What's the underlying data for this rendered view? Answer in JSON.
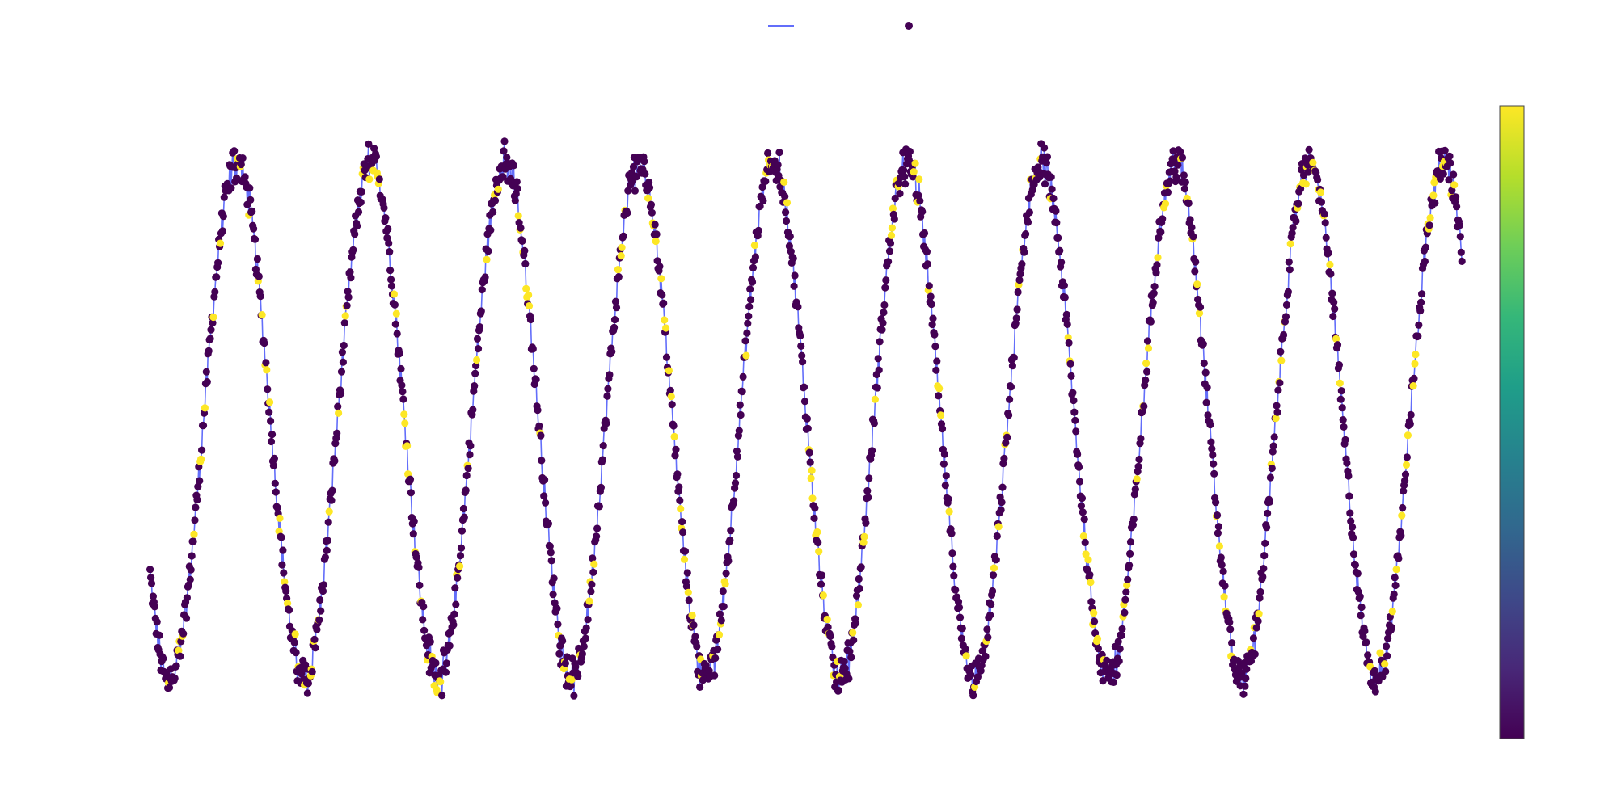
{
  "chart_data": {
    "type": "scatter",
    "title": "",
    "xlabel": "",
    "ylabel": "",
    "axes_visible": false,
    "grid": false,
    "legend_placement": "top-center",
    "legend": [
      {
        "kind": "line",
        "label": "",
        "color": "#636efa"
      },
      {
        "kind": "marker",
        "label": "",
        "color": "#440154"
      }
    ],
    "colorbar": {
      "colorscale": "viridis",
      "colors": [
        "#440154",
        "#482878",
        "#3e4989",
        "#31688e",
        "#26828e",
        "#1f9e89",
        "#35b779",
        "#6ece58",
        "#b5de2b",
        "#fde725"
      ],
      "range": [
        0,
        1
      ],
      "tick_labels": []
    },
    "series": [
      {
        "name": "",
        "mode": "lines+markers",
        "line_color": "#636efa",
        "marker_color_scale": "viridis",
        "x_range": [
          0,
          1000
        ],
        "y_range": [
          -1.2,
          1.2
        ],
        "cycles": 10,
        "peaks_x": [
          105,
          208,
          307,
          409,
          511,
          612,
          713,
          815,
          915,
          1015
        ],
        "troughs_x": [
          55,
          160,
          258,
          358,
          462,
          566,
          665,
          766,
          866,
          966
        ],
        "points_per_cycle": 170
      }
    ]
  }
}
